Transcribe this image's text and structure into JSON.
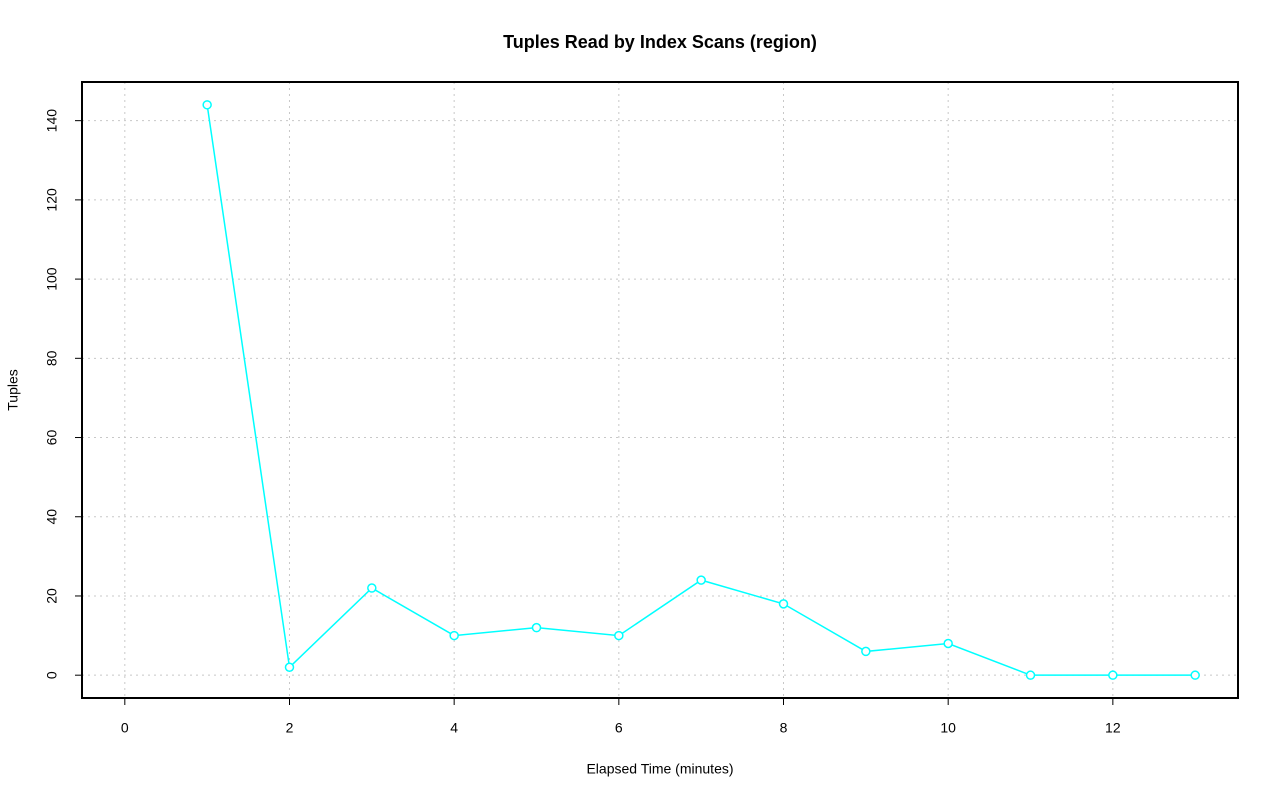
{
  "chart_data": {
    "type": "line",
    "title": "Tuples Read by Index Scans (region)",
    "x_label": "Elapsed Time (minutes)",
    "y_label": "Tuples",
    "x": [
      1,
      2,
      3,
      4,
      5,
      6,
      7,
      8,
      9,
      10,
      11,
      12,
      13
    ],
    "series": [
      {
        "color": "#00ffff",
        "values": [
          144,
          2,
          22,
          10,
          12,
          10,
          24,
          18,
          6,
          8,
          0,
          0,
          0
        ]
      }
    ],
    "xlim": [
      -0.52,
      13.52
    ],
    "xticks": [
      0,
      2,
      4,
      6,
      8,
      10,
      12
    ],
    "ylim": [
      -5.76,
      149.76
    ],
    "yticks": [
      0,
      20,
      40,
      60,
      80,
      100,
      120,
      140
    ],
    "grid": true
  }
}
